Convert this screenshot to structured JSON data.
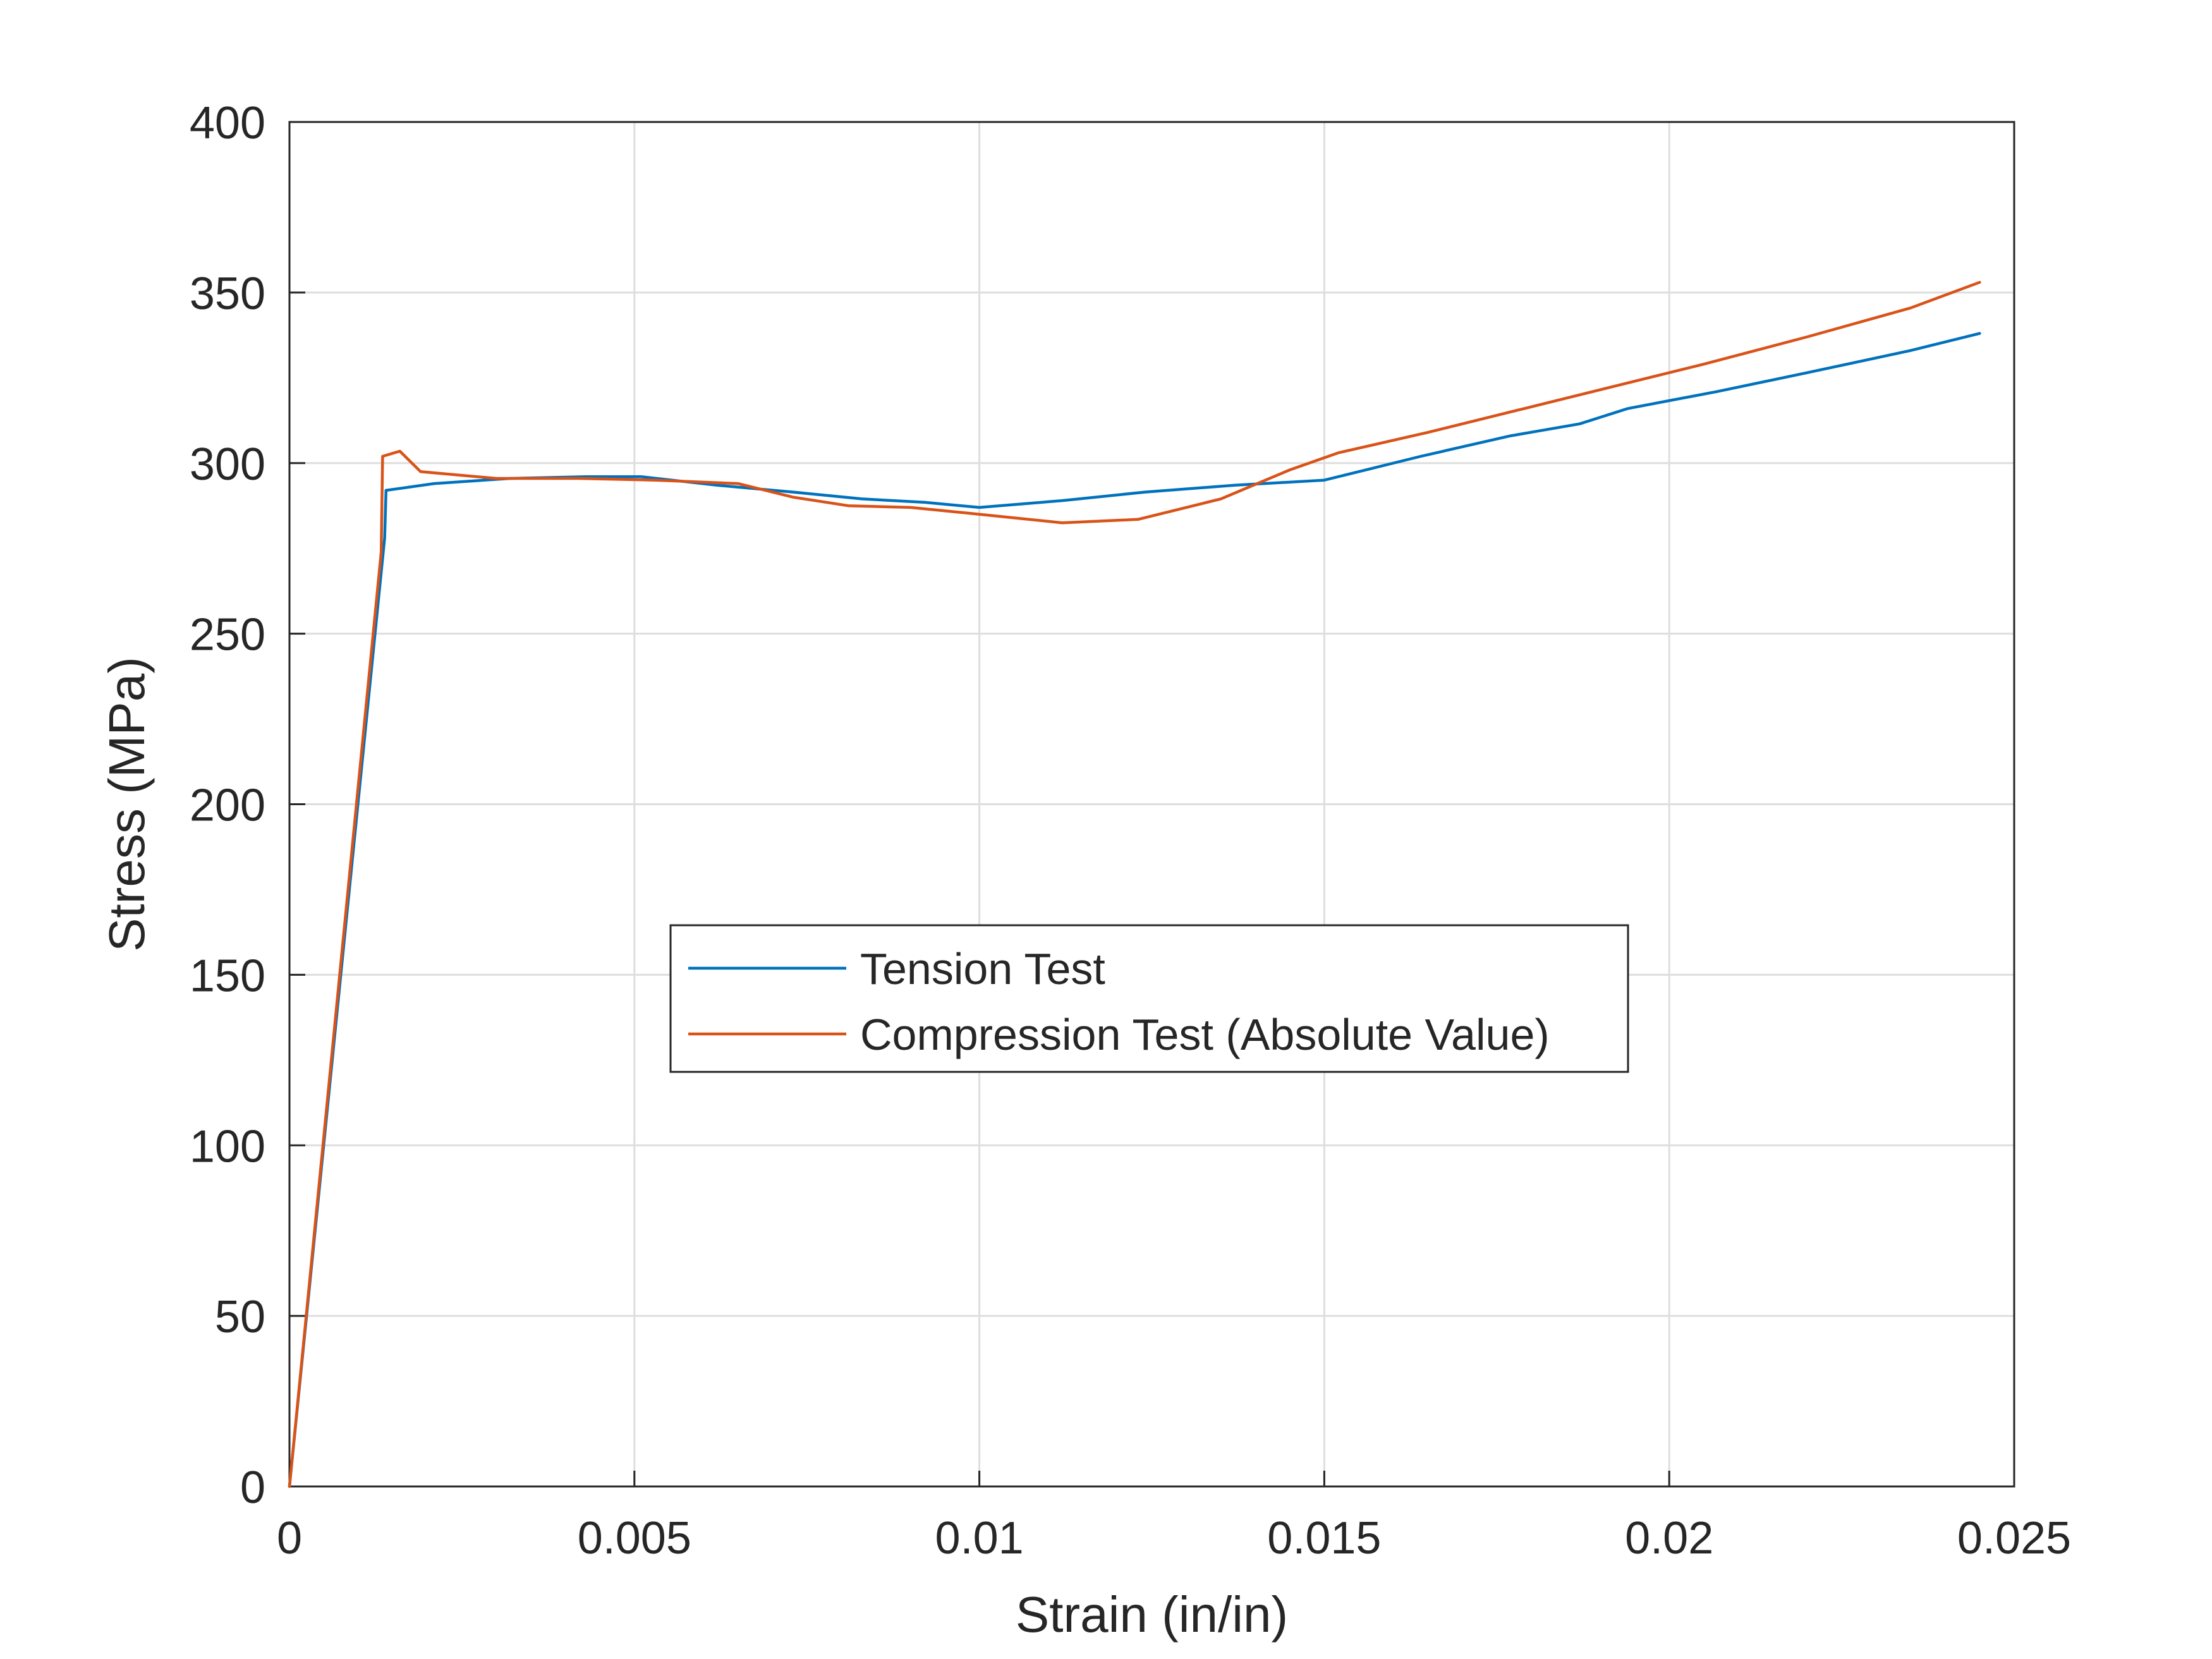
{
  "chart_data": {
    "type": "line",
    "xlabel": "Strain (in/in)",
    "ylabel": "Stress (MPa)",
    "xlim": [
      0,
      0.025
    ],
    "ylim": [
      0,
      400
    ],
    "xticks": [
      0,
      0.005,
      0.01,
      0.015,
      0.02,
      0.025
    ],
    "xtick_labels": [
      "0",
      "0.005",
      "0.01",
      "0.015",
      "0.02",
      "0.025"
    ],
    "yticks": [
      0,
      50,
      100,
      150,
      200,
      250,
      300,
      350,
      400
    ],
    "ytick_labels": [
      "0",
      "50",
      "100",
      "150",
      "200",
      "250",
      "300",
      "350",
      "400"
    ],
    "grid": true,
    "legend_position": "center",
    "series": [
      {
        "name": "Tension Test",
        "color": "#0072BD",
        "x": [
          0,
          0.00138,
          0.0014,
          0.0021,
          0.0032,
          0.0043,
          0.0051,
          0.0062,
          0.0073,
          0.0083,
          0.0092,
          0.01,
          0.0112,
          0.0124,
          0.0137,
          0.015,
          0.0164,
          0.0177,
          0.0187,
          0.0194,
          0.0207,
          0.022,
          0.0235,
          0.0245
        ],
        "y": [
          0,
          278,
          292,
          294,
          295.5,
          296,
          296,
          293.5,
          291.5,
          289.5,
          288.5,
          287,
          289,
          291.5,
          293.5,
          295,
          302,
          308,
          311.5,
          316,
          321,
          326.5,
          333,
          338
        ]
      },
      {
        "name": "Compression Test (Absolute Value)",
        "color": "#D95319",
        "x": [
          0,
          0.00133,
          0.00135,
          0.0016,
          0.0019,
          0.003,
          0.0042,
          0.0053,
          0.0065,
          0.0073,
          0.0081,
          0.009,
          0.01,
          0.0112,
          0.0123,
          0.0135,
          0.0145,
          0.0152,
          0.0165,
          0.0178,
          0.019,
          0.0205,
          0.022,
          0.0235,
          0.0245
        ],
        "y": [
          0,
          274,
          302,
          303.5,
          297.5,
          295.5,
          295.5,
          295,
          294,
          290,
          287.5,
          287,
          285,
          282.5,
          283.5,
          289.5,
          298,
          303,
          309,
          315.5,
          321.5,
          329,
          337,
          345.5,
          353
        ]
      }
    ]
  }
}
